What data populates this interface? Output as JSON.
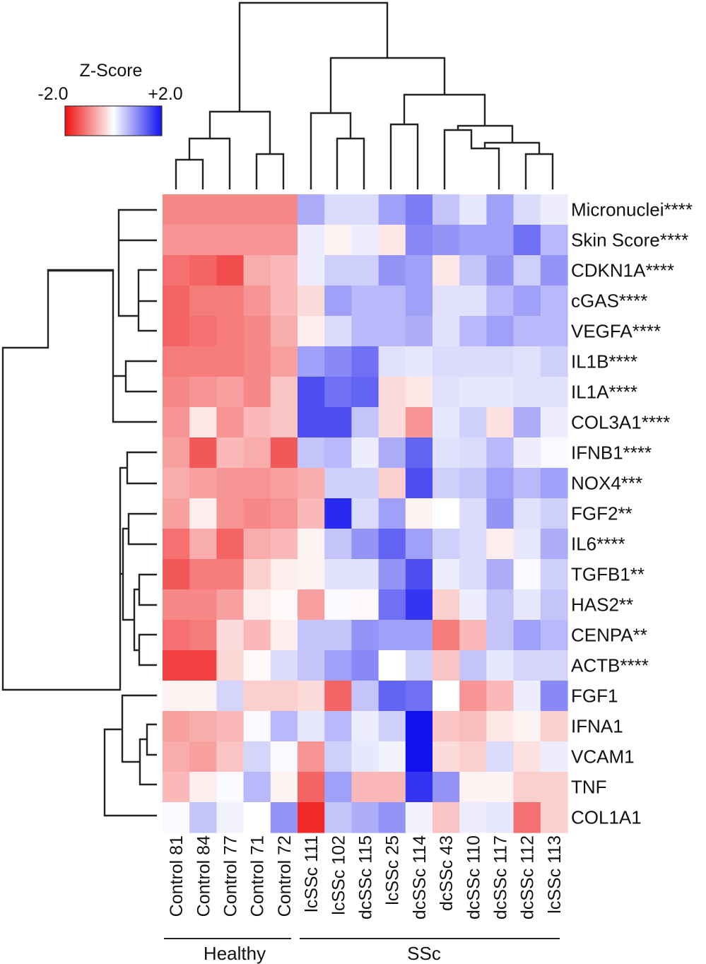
{
  "chart_data": {
    "type": "heatmap",
    "title": "",
    "legend": {
      "title": "Z-Score",
      "min_label": "-2.0",
      "max_label": "+2.0",
      "range": [
        -2.0,
        2.0
      ],
      "colors": {
        "low": "#ee1111",
        "mid": "#ffffff",
        "high": "#1111ee"
      }
    },
    "rows": [
      "Micronuclei****",
      "Skin Score****",
      "CDKN1A****",
      "cGAS****",
      "VEGFA****",
      "IL1B****",
      "IL1A****",
      "COL3A1****",
      "IFNB1****",
      "NOX4***",
      "FGF2**",
      "IL6****",
      "TGFB1**",
      "HAS2**",
      "CENPA**",
      "ACTB****",
      "FGF1",
      "IFNA1",
      "VCAM1",
      "TNF",
      "COL1A1"
    ],
    "columns": [
      "Control 81",
      "Control 84",
      "Control 77",
      "Control 71",
      "Control 72",
      "lcSSc 111",
      "lcSSc 102",
      "dcSSc 115",
      "lcSSc 25",
      "dcSSc 114",
      "dcSSc 43",
      "dcSSc 110",
      "dcSSc 117",
      "dcSSc 112",
      "lcSSc 113"
    ],
    "groups": [
      {
        "name": "Healthy",
        "start": 0,
        "end": 4
      },
      {
        "name": "SSc",
        "start": 5,
        "end": 14
      }
    ],
    "values": [
      [
        -1.0,
        -1.0,
        -1.0,
        -1.0,
        -1.0,
        0.7,
        0.3,
        0.3,
        0.8,
        1.1,
        0.5,
        0.2,
        0.8,
        0.3,
        0.15
      ],
      [
        -0.9,
        -0.9,
        -0.9,
        -0.9,
        -0.9,
        0.15,
        -0.1,
        0.15,
        -0.2,
        1.0,
        0.9,
        0.8,
        0.8,
        1.2,
        0.6
      ],
      [
        -1.2,
        -1.3,
        -1.5,
        -0.7,
        -0.6,
        0.15,
        0.4,
        0.4,
        0.9,
        0.8,
        -0.2,
        0.5,
        0.9,
        0.4,
        0.9
      ],
      [
        -1.3,
        -1.1,
        -1.1,
        -0.9,
        -0.6,
        -0.3,
        0.8,
        0.6,
        0.6,
        0.8,
        0.25,
        0.25,
        0.6,
        0.8,
        0.6
      ],
      [
        -1.3,
        -1.2,
        -1.1,
        -1.0,
        -0.7,
        -0.15,
        0.3,
        0.6,
        0.6,
        0.7,
        0.25,
        0.6,
        0.8,
        0.6,
        0.6
      ],
      [
        -1.1,
        -1.1,
        -1.1,
        -1.0,
        -0.8,
        0.8,
        1.0,
        1.2,
        0.25,
        0.2,
        0.3,
        0.3,
        0.3,
        0.25,
        0.4
      ],
      [
        -1.0,
        -0.9,
        -0.8,
        -1.0,
        -0.5,
        1.5,
        1.2,
        1.3,
        -0.3,
        -0.2,
        0.25,
        0.2,
        0.2,
        0.25,
        0.25
      ],
      [
        -0.9,
        -0.2,
        -0.9,
        -0.6,
        -0.5,
        1.5,
        1.5,
        0.5,
        -0.3,
        -0.9,
        0.2,
        0.4,
        -0.25,
        0.7,
        0.15
      ],
      [
        -0.8,
        -1.4,
        -0.6,
        -0.7,
        -1.4,
        0.5,
        0.6,
        0.15,
        0.7,
        1.3,
        0.25,
        0.3,
        0.6,
        0.15,
        0.05
      ],
      [
        -0.7,
        -0.8,
        -0.9,
        -0.9,
        -0.8,
        -0.7,
        0.4,
        0.4,
        -0.4,
        1.5,
        0.4,
        0.5,
        0.8,
        0.6,
        0.8
      ],
      [
        -0.8,
        -0.15,
        -0.9,
        -1.0,
        -0.9,
        -0.6,
        1.8,
        0.3,
        0.8,
        -0.1,
        0.0,
        0.3,
        0.9,
        0.25,
        0.4
      ],
      [
        -1.2,
        -0.7,
        -1.3,
        -0.7,
        -0.6,
        -0.1,
        0.5,
        0.9,
        1.3,
        0.8,
        0.4,
        0.3,
        -0.15,
        0.2,
        0.7
      ],
      [
        -1.4,
        -1.1,
        -1.1,
        -0.4,
        -0.15,
        -0.1,
        0.25,
        0.25,
        0.9,
        1.5,
        0.15,
        0.3,
        0.7,
        0.05,
        0.4
      ],
      [
        -1.0,
        -1.0,
        -0.8,
        -0.15,
        -0.05,
        -0.8,
        0.05,
        -0.05,
        1.2,
        1.7,
        -0.4,
        0.15,
        0.5,
        0.2,
        0.5
      ],
      [
        -1.2,
        -1.1,
        -0.3,
        -0.6,
        -0.15,
        0.5,
        0.5,
        0.9,
        0.8,
        0.8,
        -1.1,
        -0.6,
        0.5,
        0.8,
        0.6
      ],
      [
        -1.6,
        -1.6,
        -0.35,
        -0.05,
        0.3,
        0.5,
        0.8,
        1.0,
        0.0,
        0.4,
        -0.5,
        0.5,
        0.2,
        0.35,
        0.35
      ],
      [
        -0.1,
        -0.1,
        0.35,
        -0.4,
        -0.4,
        -0.3,
        -1.3,
        0.5,
        1.3,
        1.2,
        0.0,
        -0.9,
        -0.6,
        0.15,
        1.0
      ],
      [
        -0.8,
        -0.7,
        -0.6,
        0.05,
        0.6,
        0.2,
        0.6,
        0.15,
        0.4,
        2.0,
        -0.5,
        -0.55,
        -0.2,
        -0.1,
        -0.4
      ],
      [
        -0.7,
        -0.8,
        -0.5,
        0.35,
        0.05,
        -0.9,
        0.4,
        0.2,
        0.1,
        2.0,
        -0.3,
        -0.4,
        0.3,
        -0.25,
        0.15
      ],
      [
        -0.6,
        -0.15,
        0.05,
        0.6,
        -0.1,
        -1.3,
        0.8,
        -0.6,
        -0.6,
        1.7,
        0.9,
        -0.1,
        -0.1,
        -0.4,
        -0.4
      ],
      [
        0.05,
        0.5,
        0.1,
        0.0,
        0.9,
        -1.8,
        0.5,
        0.7,
        0.9,
        0.1,
        -0.5,
        0.15,
        0.2,
        -1.2,
        -0.4
      ]
    ]
  }
}
